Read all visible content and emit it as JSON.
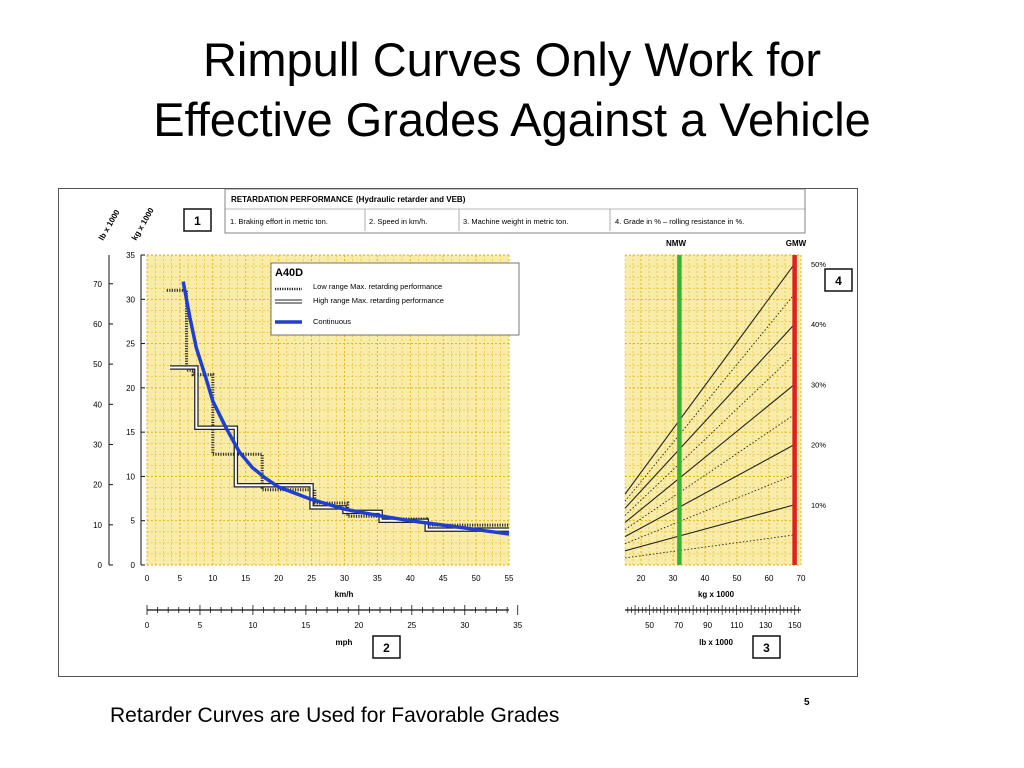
{
  "slide": {
    "title_line1": "Rimpull Curves Only Work for",
    "title_line2": "Effective Grades Against a Vehicle",
    "caption": "Retarder Curves are Used for Favorable Grades",
    "page_number": "5"
  },
  "header": {
    "title": "RETARDATION PERFORMANCE",
    "subtitle": "(Hydraulic retarder and VEB)",
    "steps": [
      "1. Braking effort in metric ton.",
      "2. Speed in km/h.",
      "3. Machine weight in metric ton.",
      "4. Grade in % – rolling resistance in %."
    ]
  },
  "boxes": {
    "b1": "1",
    "b2": "2",
    "b3": "3",
    "b4": "4"
  },
  "axes": {
    "lb_label": "lb x 1000",
    "kg_label": "kg x 1000",
    "kmh_label": "km/h",
    "mph_label": "mph",
    "weight_kg_label": "kg x 1000",
    "weight_lb_label": "lb x 1000",
    "nmw_label": "NMW",
    "gmw_label": "GMW"
  },
  "legend": {
    "model": "A40D",
    "low_range": "Low range Max. retarding performance",
    "high_range": "High range Max. retarding performance",
    "continuous": "Continuous"
  },
  "colors": {
    "panel_bg": "#f8eca8",
    "continuous": "#1f3fd1",
    "nmw": "#33b533",
    "gmw": "#e02020"
  },
  "chart_data": [
    {
      "type": "line",
      "title": "",
      "xlabel": "km/h",
      "ylabel": "kg x 1000",
      "xlim": [
        0,
        55
      ],
      "ylim": [
        0,
        35
      ],
      "x_ticks": [
        "0",
        "5",
        "10",
        "15",
        "20",
        "25",
        "30",
        "35",
        "40",
        "45",
        "50",
        "55"
      ],
      "y_ticks_kg": [
        "0",
        "5",
        "10",
        "15",
        "20",
        "25",
        "30",
        "35"
      ],
      "y_ticks_lb": [
        "0",
        "10",
        "20",
        "30",
        "40",
        "50",
        "60",
        "70"
      ],
      "x2_ticks_mph": [
        "0",
        "5",
        "10",
        "15",
        "20",
        "25",
        "30",
        "35"
      ],
      "grid": true,
      "legend_position": "top-right",
      "series": [
        {
          "name": "Continuous",
          "style": "solid-blue",
          "points": [
            [
              5.5,
              32
            ],
            [
              6.5,
              28
            ],
            [
              7.5,
              24.5
            ],
            [
              9,
              21
            ],
            [
              10,
              18.5
            ],
            [
              12,
              15.5
            ],
            [
              14,
              12.8
            ],
            [
              16,
              11
            ],
            [
              18,
              9.8
            ],
            [
              20,
              8.8
            ],
            [
              22.5,
              8.1
            ],
            [
              25,
              7.4
            ],
            [
              30,
              6.3
            ],
            [
              35,
              5.6
            ],
            [
              40,
              5
            ],
            [
              45,
              4.5
            ],
            [
              50,
              4
            ],
            [
              55,
              3.5
            ]
          ]
        },
        {
          "name": "Low range Max. retarding performance",
          "style": "dotted-step",
          "points": [
            [
              3,
              31
            ],
            [
              6,
              31
            ],
            [
              6,
              22
            ],
            [
              7,
              22
            ],
            [
              7,
              21.5
            ],
            [
              10,
              21.5
            ],
            [
              10,
              12.5
            ],
            [
              17.5,
              12.5
            ],
            [
              17.5,
              8.5
            ],
            [
              25.5,
              8.5
            ],
            [
              25.5,
              7
            ],
            [
              30.5,
              7
            ],
            [
              30.5,
              5.5
            ],
            [
              36,
              5.5
            ],
            [
              36,
              5.2
            ],
            [
              42.5,
              5.2
            ],
            [
              42.5,
              4.5
            ],
            [
              55,
              4.5
            ]
          ]
        },
        {
          "name": "High range Max. retarding performance",
          "style": "double-step",
          "points": [
            [
              3.5,
              22.3
            ],
            [
              7.5,
              22.3
            ],
            [
              7.5,
              15.5
            ],
            [
              13.5,
              15.5
            ],
            [
              13.5,
              9
            ],
            [
              20,
              9
            ],
            [
              25,
              9
            ],
            [
              25,
              6.5
            ],
            [
              30,
              6.5
            ],
            [
              30,
              6
            ],
            [
              35.5,
              6
            ],
            [
              35.5,
              5
            ],
            [
              42.5,
              5
            ],
            [
              42.5,
              4
            ],
            [
              55,
              4
            ]
          ]
        }
      ]
    },
    {
      "type": "line",
      "title": "",
      "xlabel": "kg x 1000",
      "ylabel": "",
      "xlim": [
        15,
        70
      ],
      "x_ticks": [
        "20",
        "30",
        "40",
        "50",
        "60",
        "70"
      ],
      "x2_ticks_lb": [
        "50",
        "70",
        "90",
        "110",
        "130",
        "150"
      ],
      "grade_labels": [
        "10%",
        "20%",
        "30%",
        "40%",
        "50%"
      ],
      "grid": true,
      "reference_lines": [
        {
          "name": "NMW",
          "x": 32
        },
        {
          "name": "GMW",
          "x": 68
        }
      ],
      "series": [
        {
          "grade_percent": 5,
          "style": "dotted",
          "points": [
            [
              15,
              0.8
            ],
            [
              68,
              3.4
            ]
          ]
        },
        {
          "grade_percent": 10,
          "style": "solid",
          "points": [
            [
              15,
              1.6
            ],
            [
              68,
              6.8
            ]
          ]
        },
        {
          "grade_percent": 15,
          "style": "dotted",
          "points": [
            [
              15,
              2.4
            ],
            [
              68,
              10.2
            ]
          ]
        },
        {
          "grade_percent": 20,
          "style": "solid",
          "points": [
            [
              15,
              3.2
            ],
            [
              68,
              13.6
            ]
          ]
        },
        {
          "grade_percent": 25,
          "style": "dotted",
          "points": [
            [
              15,
              4.0
            ],
            [
              68,
              17.0
            ]
          ]
        },
        {
          "grade_percent": 30,
          "style": "solid",
          "points": [
            [
              15,
              4.8
            ],
            [
              68,
              20.4
            ]
          ]
        },
        {
          "grade_percent": 35,
          "style": "dotted",
          "points": [
            [
              15,
              5.6
            ],
            [
              68,
              23.8
            ]
          ]
        },
        {
          "grade_percent": 40,
          "style": "solid",
          "points": [
            [
              15,
              6.4
            ],
            [
              68,
              27.2
            ]
          ]
        },
        {
          "grade_percent": 45,
          "style": "dotted",
          "points": [
            [
              15,
              7.2
            ],
            [
              68,
              30.6
            ]
          ]
        },
        {
          "grade_percent": 50,
          "style": "solid",
          "points": [
            [
              15,
              8.0
            ],
            [
              68,
              34.0
            ]
          ]
        }
      ]
    }
  ]
}
